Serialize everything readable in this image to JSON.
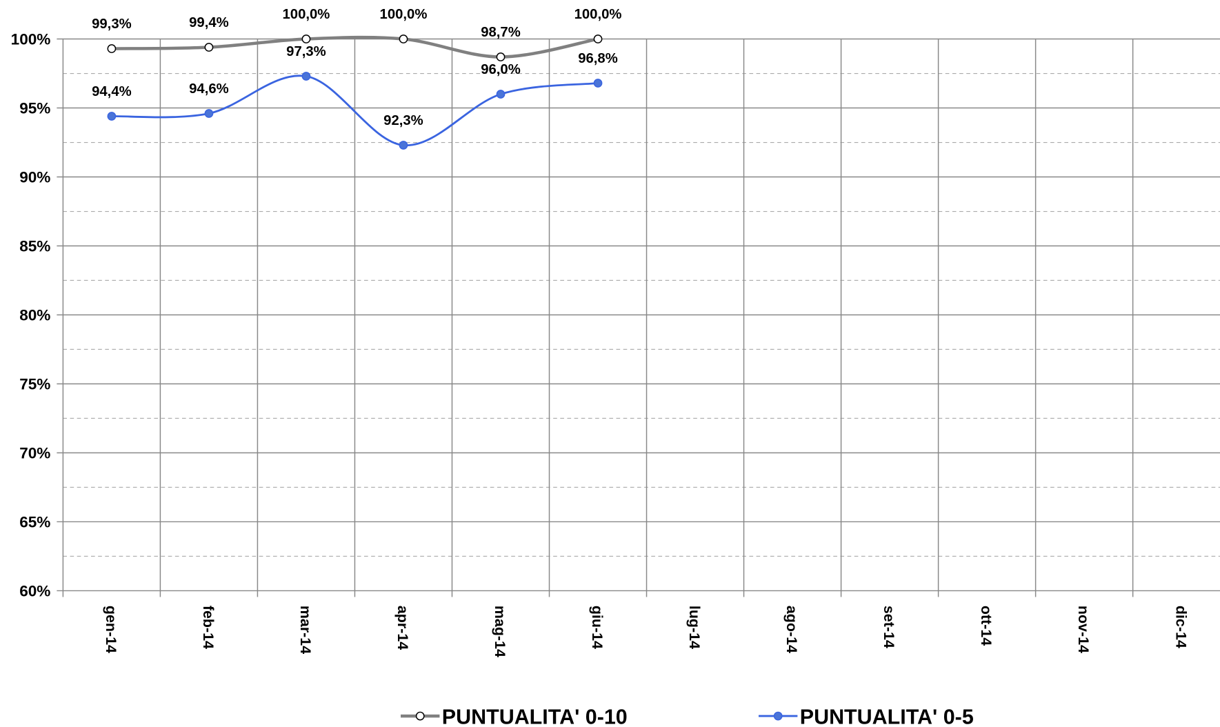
{
  "chart_data": {
    "type": "line",
    "categories": [
      "gen-14",
      "feb-14",
      "mar-14",
      "apr-14",
      "mag-14",
      "giu-14",
      "lug-14",
      "ago-14",
      "set-14",
      "ott-14",
      "nov-14",
      "dic-14"
    ],
    "series": [
      {
        "name": "PUNTUALITA' 0-10",
        "color": "#808080",
        "marker_fill": "#ffffff",
        "values": [
          99.3,
          99.4,
          100.0,
          100.0,
          98.7,
          100.0,
          null,
          null,
          null,
          null,
          null,
          null
        ],
        "value_labels": [
          "99,3%",
          "99,4%",
          "100,0%",
          "100,0%",
          "98,7%",
          "100,0%",
          null,
          null,
          null,
          null,
          null,
          null
        ]
      },
      {
        "name": "PUNTUALITA' 0-5",
        "color": "#3a64e0",
        "marker_fill": "#4a74d8",
        "values": [
          94.4,
          94.6,
          97.3,
          92.3,
          96.0,
          96.8,
          null,
          null,
          null,
          null,
          null,
          null
        ],
        "value_labels": [
          "94,4%",
          "94,6%",
          "97,3%",
          "92,3%",
          "96,0%",
          "96,8%",
          null,
          null,
          null,
          null,
          null,
          null
        ]
      }
    ],
    "ylim": [
      60,
      100
    ],
    "yticks": [
      {
        "value": 60,
        "label": "60%"
      },
      {
        "value": 65,
        "label": "65%"
      },
      {
        "value": 70,
        "label": "70%"
      },
      {
        "value": 75,
        "label": "75%"
      },
      {
        "value": 80,
        "label": "80%"
      },
      {
        "value": 85,
        "label": "85%"
      },
      {
        "value": 90,
        "label": "90%"
      },
      {
        "value": 95,
        "label": "95%"
      },
      {
        "value": 100,
        "label": "100%"
      }
    ],
    "minor_yticks": [
      62.5,
      67.5,
      72.5,
      77.5,
      82.5,
      87.5,
      92.5,
      97.5
    ],
    "grid": true,
    "smooth": true,
    "legend": "bottom"
  }
}
